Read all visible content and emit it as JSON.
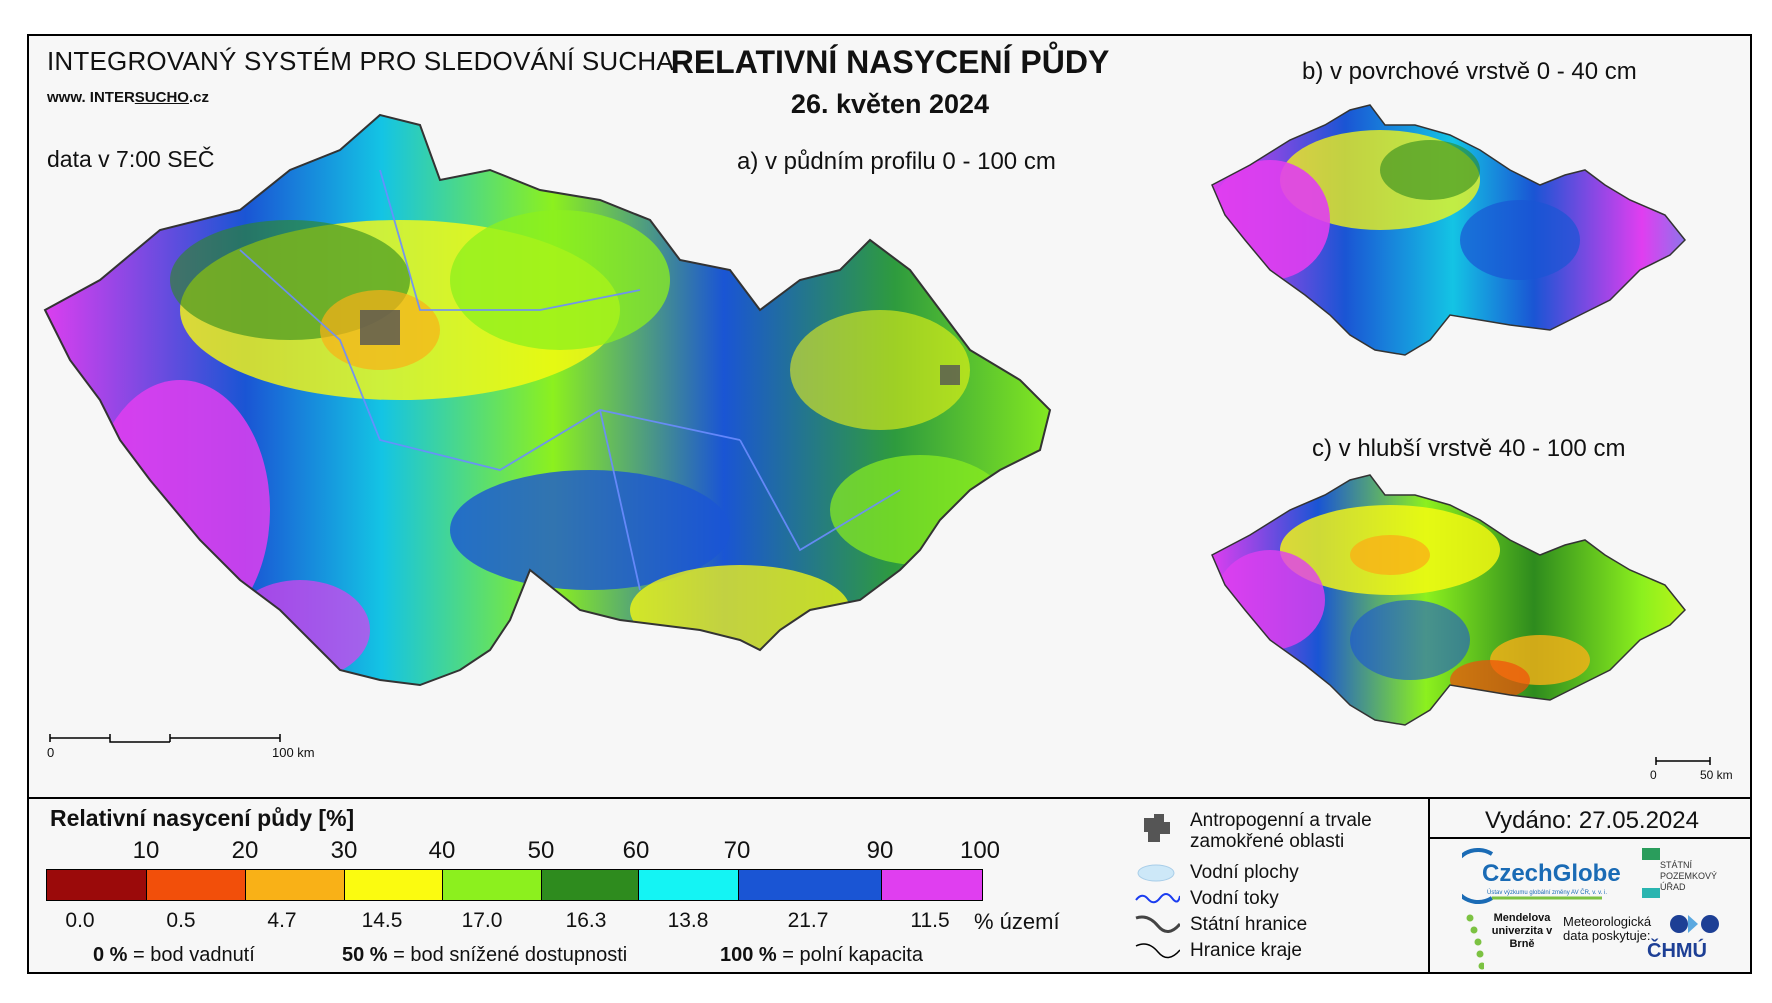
{
  "header": {
    "system_title": "INTEGROVANÝ SYSTÉM PRO SLEDOVÁNÍ SUCHA",
    "website_prefix": "www. INTER",
    "website_highlight": "SUCHO",
    "website_suffix": ".cz",
    "data_time": "data v 7:00 SEČ",
    "main_title": "RELATIVNÍ NASYCENÍ PŮDY",
    "date": "26. květen 2024"
  },
  "maps": {
    "a_label": "a) v půdním profilu 0 - 100 cm",
    "b_label": "b) v povrchové vrstvě 0 - 40 cm",
    "c_label": "c) v hlubší vrstvě 40 - 100 cm",
    "scale_main": {
      "start": "0",
      "end": "100 km"
    },
    "scale_small": {
      "start": "0",
      "end": "50 km"
    }
  },
  "legend": {
    "title": "Relativní nasycení půdy [%]",
    "ticks": [
      "10",
      "20",
      "30",
      "40",
      "50",
      "60",
      "70",
      "90",
      "100"
    ],
    "colors": [
      "#9b0a0a",
      "#f24f0a",
      "#f9b117",
      "#fbfb10",
      "#8cf01e",
      "#2e8b1e",
      "#14f4f4",
      "#1a55d4",
      "#e03ef0"
    ],
    "territory_share": [
      "0.0",
      "0.5",
      "4.7",
      "14.5",
      "17.0",
      "16.3",
      "13.8",
      "21.7",
      "11.5"
    ],
    "territory_unit": "% území",
    "definitions": [
      {
        "value": "0 %",
        "text": "= bod vadnutí"
      },
      {
        "value": "50 %",
        "text": "= bod snížené dostupnosti"
      },
      {
        "value": "100 %",
        "text": "= polní kapacita"
      }
    ],
    "symbols": [
      {
        "icon": "urban-area-icon",
        "label": "Antropogenní a trvale zamokřené oblasti"
      },
      {
        "icon": "water-body-icon",
        "label": "Vodní plochy"
      },
      {
        "icon": "river-icon",
        "label": "Vodní toky"
      },
      {
        "icon": "state-border-icon",
        "label": "Státní hranice"
      },
      {
        "icon": "region-border-icon",
        "label": "Hranice kraje"
      }
    ]
  },
  "footer": {
    "issued": "Vydáno: 27.05.2024",
    "czechglobe": "CzechGlobe",
    "czechglobe_sub": "Ústav výzkumu globální změny AV ČR, v. v. i.",
    "spu": "STÁTNÍ POZEMKOVÝ ÚŘAD",
    "mendel": "Mendelova univerzita v Brně",
    "meteo": "Meteorologická data poskytuje:",
    "chmu": "ČHMÚ"
  }
}
